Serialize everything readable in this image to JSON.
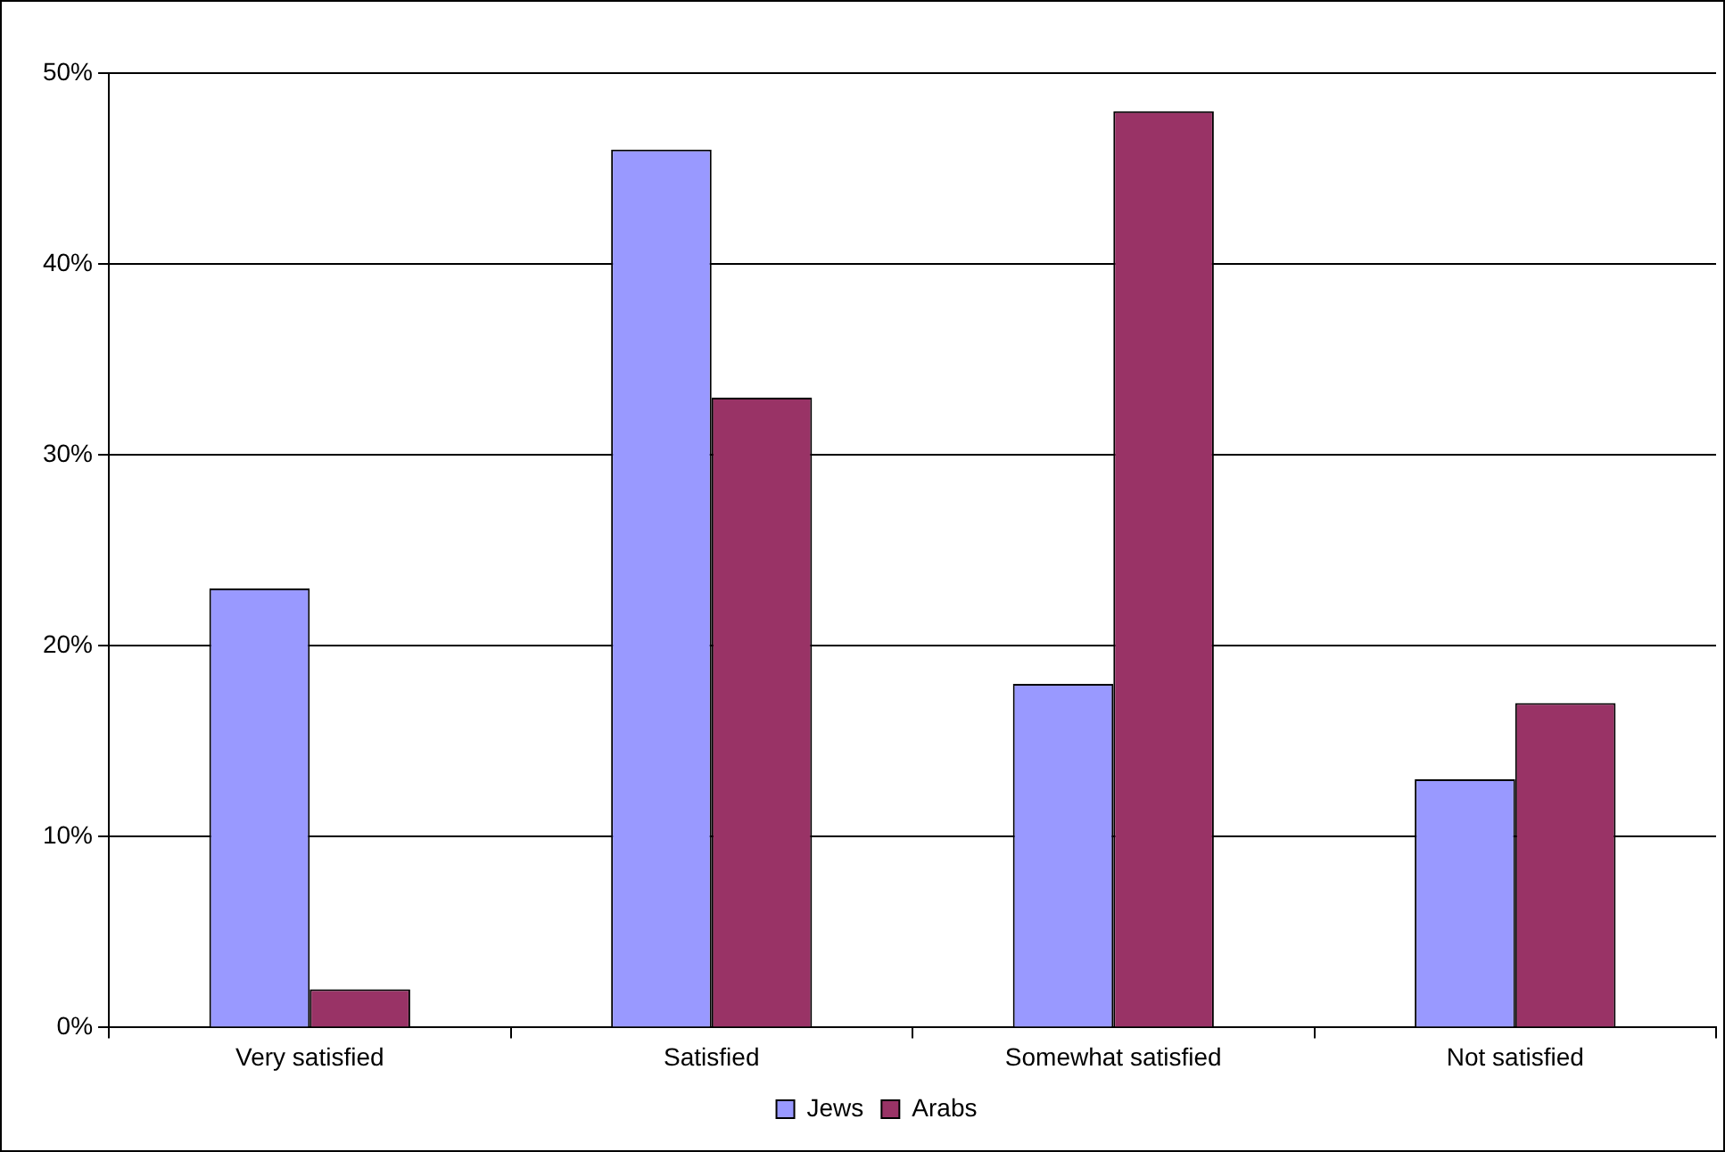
{
  "chart_data": {
    "type": "bar",
    "categories": [
      "Very satisfied",
      "Satisfied",
      "Somewhat satisfied",
      "Not satisfied"
    ],
    "series": [
      {
        "name": "Jews",
        "color": "#9999ff",
        "values": [
          23,
          46,
          18,
          13
        ]
      },
      {
        "name": "Arabs",
        "color": "#993366",
        "values": [
          2,
          33,
          48,
          17
        ]
      }
    ],
    "ylim": [
      0,
      50
    ],
    "yticks": [
      {
        "value": 0,
        "label": "0%"
      },
      {
        "value": 10,
        "label": "10%"
      },
      {
        "value": 20,
        "label": "20%"
      },
      {
        "value": 30,
        "label": "30%"
      },
      {
        "value": 40,
        "label": "40%"
      },
      {
        "value": 50,
        "label": "50%"
      }
    ],
    "grid": "y",
    "legend": "bottom"
  }
}
